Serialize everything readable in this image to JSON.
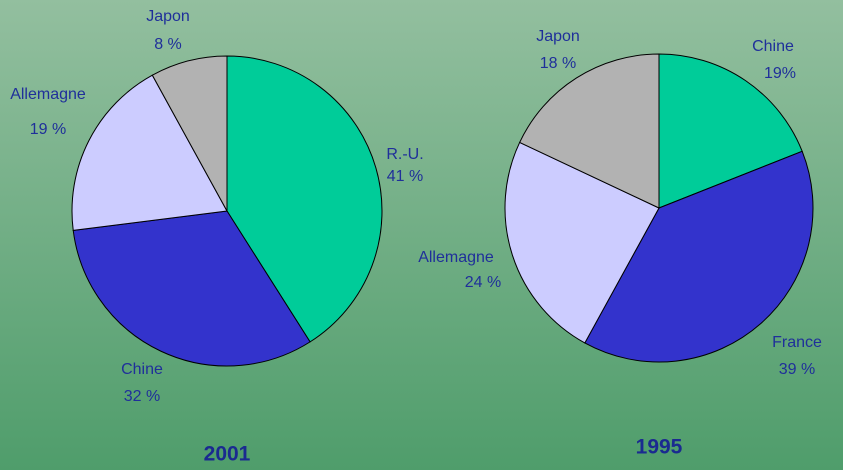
{
  "chart_data": [
    {
      "type": "pie",
      "title": "2001",
      "categories": [
        "R.-U.",
        "Chine",
        "Allemagne",
        "Japon"
      ],
      "values": [
        41,
        32,
        19,
        8
      ],
      "value_labels": [
        "41 %",
        "32 %",
        "19 %",
        "8 %"
      ],
      "colors": [
        "#00cc99",
        "#3333cc",
        "#ccccff",
        "#b2b2b2"
      ]
    },
    {
      "type": "pie",
      "title": "1995",
      "categories": [
        "Chine",
        "France",
        "Allemagne",
        "Japon"
      ],
      "values": [
        19,
        39,
        24,
        18
      ],
      "value_labels": [
        "19%",
        "39 %",
        "24 %",
        "18 %"
      ],
      "colors": [
        "#00cc99",
        "#3333cc",
        "#ccccff",
        "#b2b2b2"
      ]
    }
  ]
}
